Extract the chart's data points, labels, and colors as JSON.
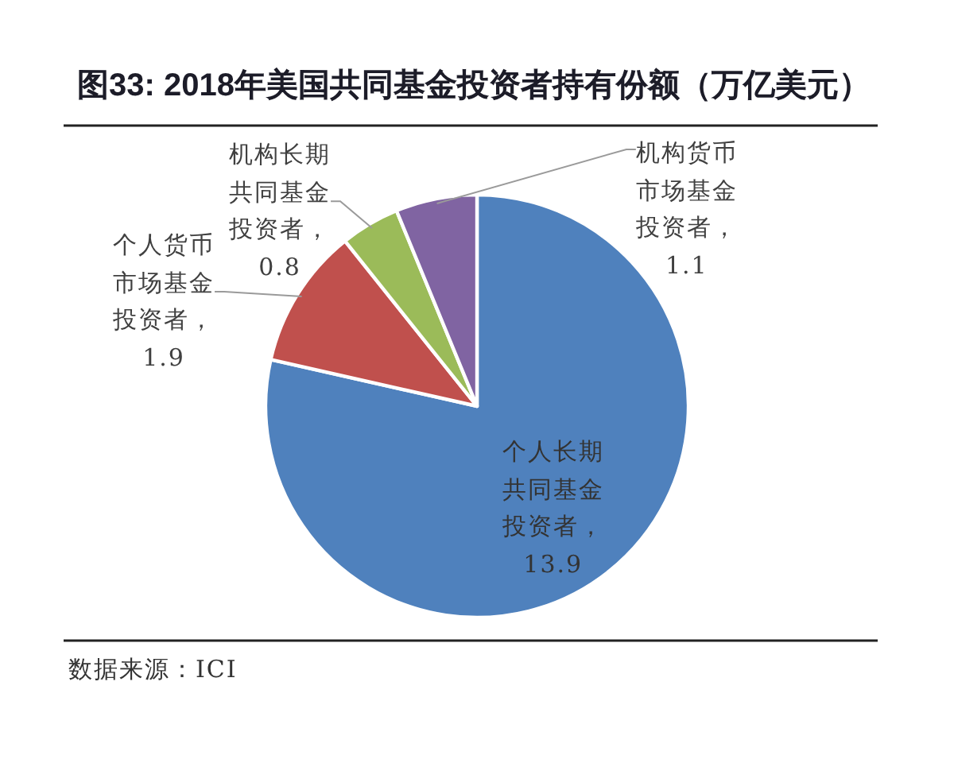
{
  "chart_data": {
    "type": "pie",
    "title": "图33: 2018年美国共同基金投资者持有份额（万亿美元）",
    "categories": [
      "个人长期共同基金投资者",
      "个人货币市场基金投资者",
      "机构长期共同基金投资者",
      "机构货币市场基金投资者"
    ],
    "values": [
      13.9,
      1.9,
      0.8,
      1.1
    ],
    "value_labels": [
      "，13.9",
      "，1.9",
      "，0.8",
      "，1.1"
    ],
    "colors": [
      "#4f81bd",
      "#c0504d",
      "#9bbb59",
      "#8064a2"
    ],
    "annotations": [
      "数据来源：ICI"
    ]
  }
}
